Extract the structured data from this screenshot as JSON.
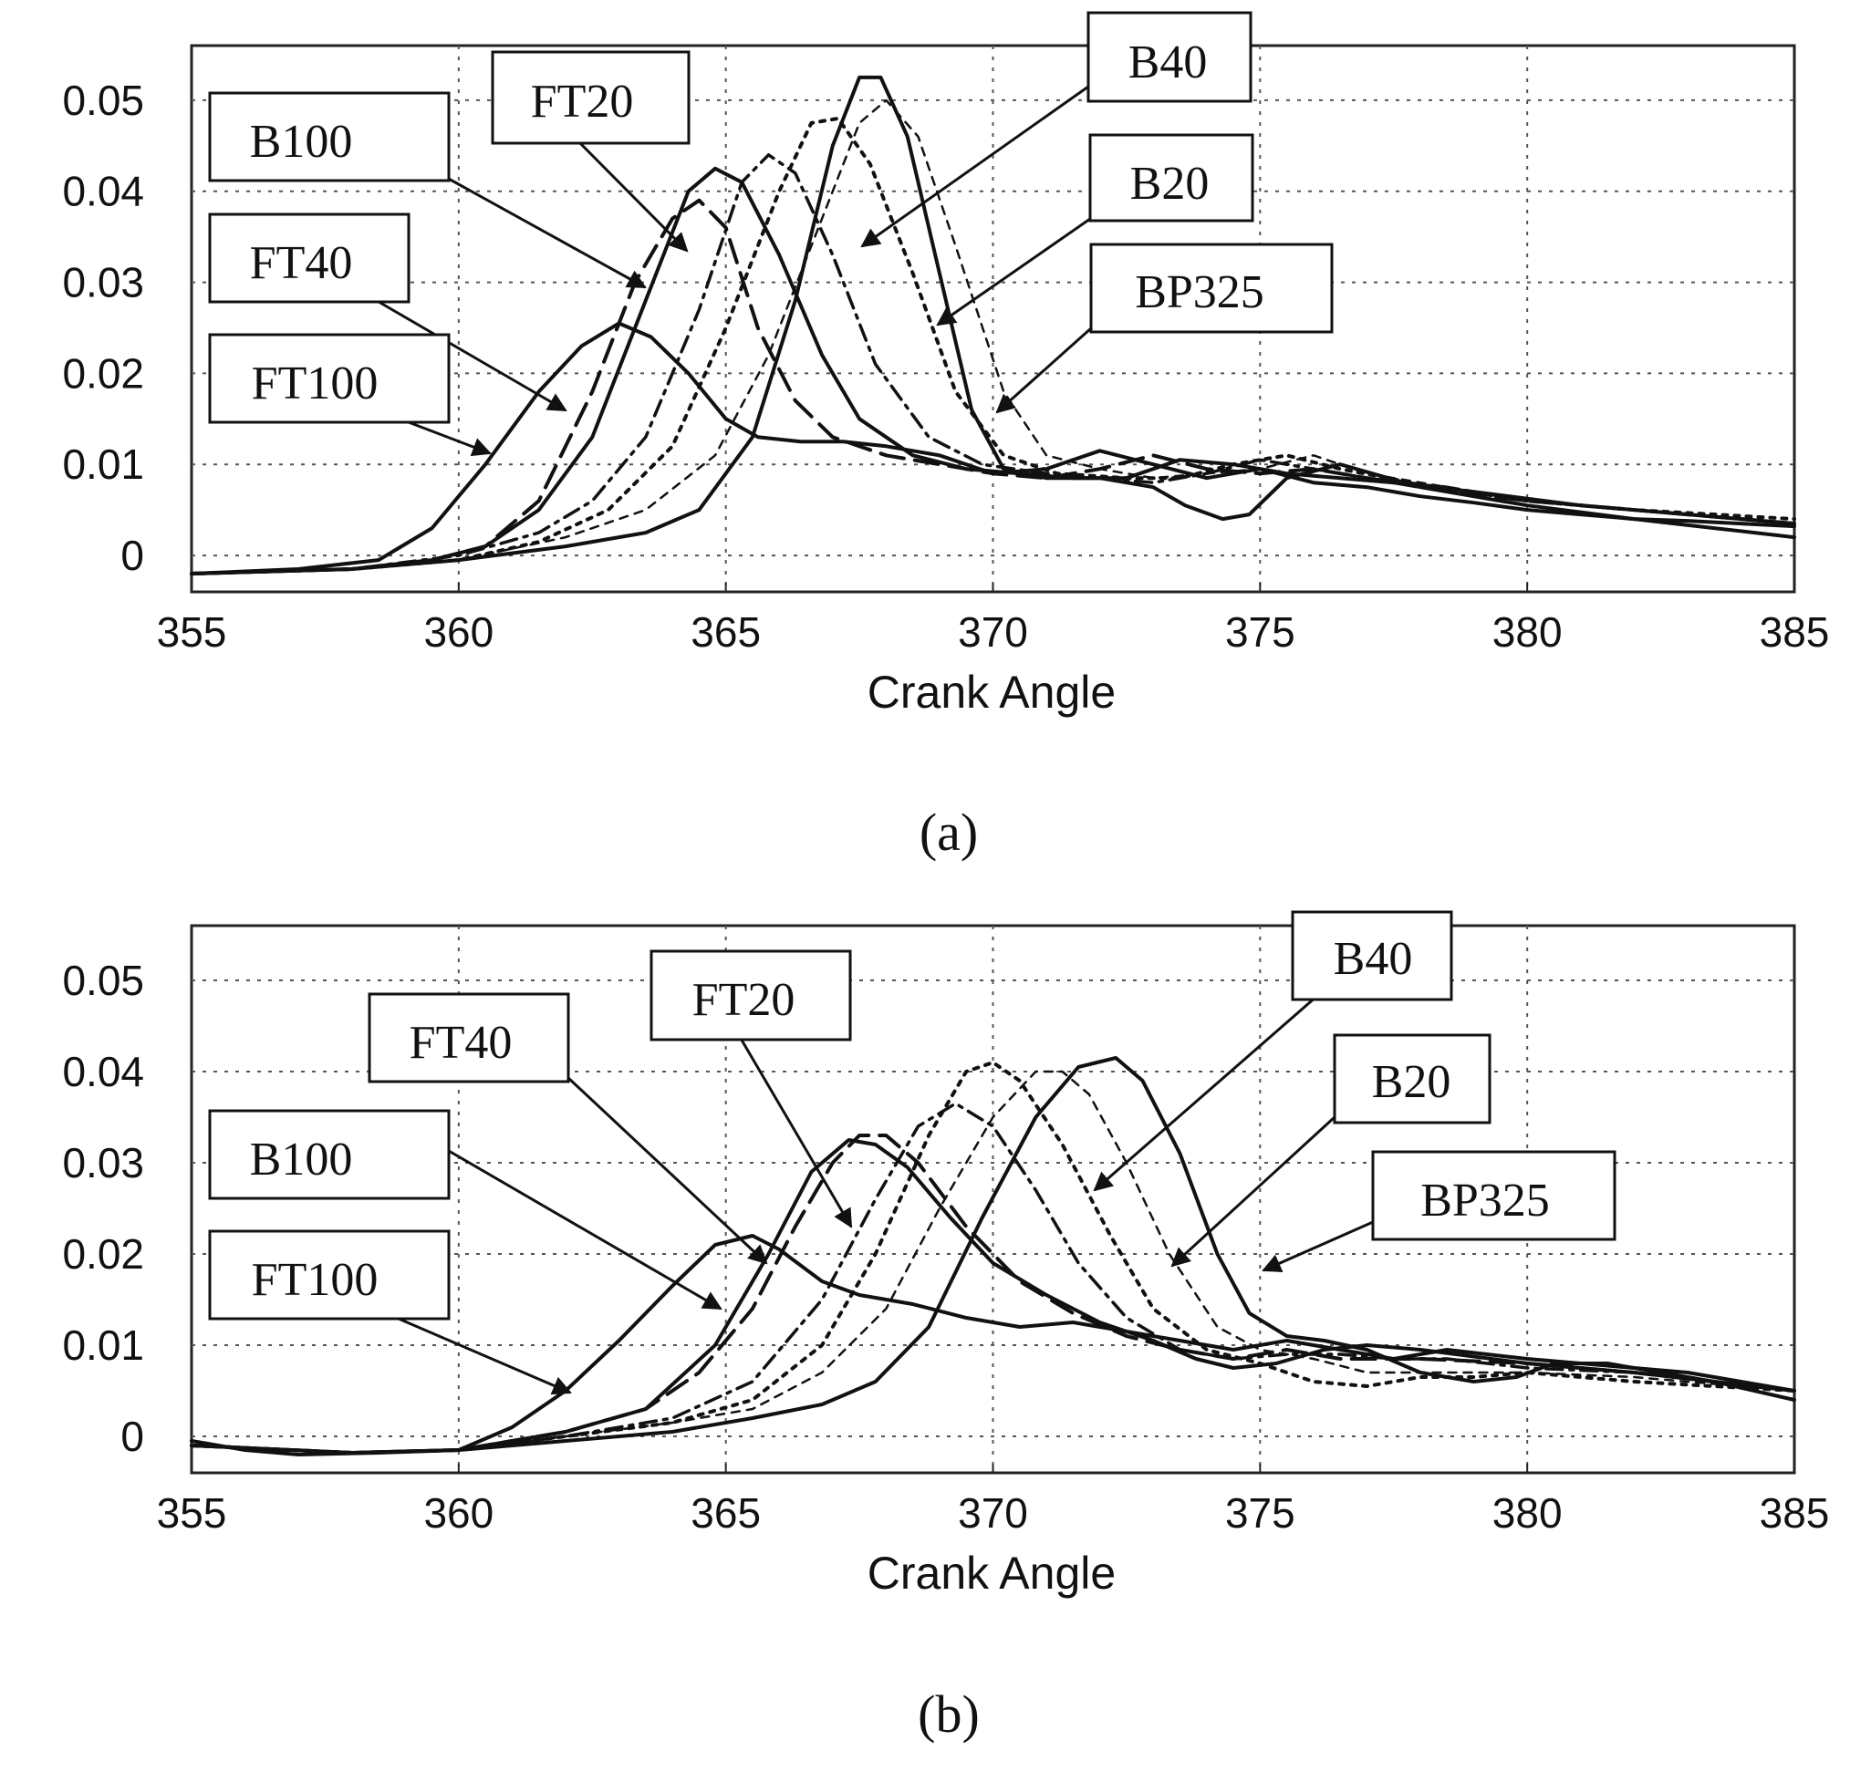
{
  "panels": [
    {
      "id": "a",
      "panel_label": "(a)",
      "labels": {
        "B100": "B100",
        "FT20": "FT20",
        "B40": "B40",
        "B20": "B20",
        "FT40": "FT40",
        "BP325": "BP325",
        "FT100": "FT100"
      }
    },
    {
      "id": "b",
      "panel_label": "(b)",
      "labels": {
        "B40": "B40",
        "FT20": "FT20",
        "FT40": "FT40",
        "B20": "B20",
        "B100": "B100",
        "BP325": "BP325",
        "FT100": "FT100"
      }
    }
  ],
  "chart_data": [
    {
      "type": "line",
      "panel": "(a)",
      "title": "",
      "xlabel": "Crank Angle",
      "ylabel": "",
      "xlim": [
        355,
        385
      ],
      "ylim": [
        -0.004,
        0.056
      ],
      "xticks": [
        355,
        360,
        365,
        370,
        375,
        380,
        385
      ],
      "yticks": [
        0,
        0.01,
        0.02,
        0.03,
        0.04,
        0.05
      ],
      "ytick_labels": [
        "0",
        "0.01",
        "0.02",
        "0.03",
        "0.04",
        "0.05"
      ],
      "grid": true,
      "series": [
        {
          "name": "FT100",
          "style": "solid",
          "x": [
            355,
            357,
            358.5,
            359.5,
            360.5,
            361.5,
            362.3,
            363,
            363.6,
            364.3,
            365,
            365.6,
            366.4,
            367.2,
            368,
            369,
            370,
            371,
            372,
            373,
            374,
            375,
            376,
            377,
            378,
            379,
            380,
            381,
            382,
            383,
            384,
            385
          ],
          "y": [
            -0.002,
            -0.0015,
            -0.0005,
            0.003,
            0.01,
            0.018,
            0.023,
            0.0255,
            0.024,
            0.02,
            0.015,
            0.013,
            0.0125,
            0.0125,
            0.012,
            0.011,
            0.009,
            0.0095,
            0.0115,
            0.01,
            0.0085,
            0.0095,
            0.008,
            0.0075,
            0.0065,
            0.0058,
            0.005,
            0.0045,
            0.004,
            0.0038,
            0.0035,
            0.0032
          ]
        },
        {
          "name": "FT40",
          "style": "longdash",
          "x": [
            355,
            358,
            359.5,
            360.5,
            361.5,
            362.5,
            363.3,
            364,
            364.5,
            365,
            365.6,
            366.3,
            367,
            368,
            369,
            370,
            371,
            372,
            373,
            374,
            375,
            376,
            377,
            378,
            380,
            382,
            385
          ],
          "y": [
            -0.002,
            -0.0015,
            -0.0005,
            0.001,
            0.006,
            0.018,
            0.03,
            0.037,
            0.039,
            0.036,
            0.025,
            0.017,
            0.013,
            0.011,
            0.01,
            0.009,
            0.0085,
            0.0095,
            0.011,
            0.0095,
            0.009,
            0.0095,
            0.0085,
            0.0075,
            0.006,
            0.005,
            0.0035
          ]
        },
        {
          "name": "B100",
          "style": "solid",
          "x": [
            355,
            358,
            359.5,
            360.5,
            361.5,
            362.5,
            363.5,
            364.3,
            364.8,
            365.3,
            366,
            366.8,
            367.5,
            368.5,
            369.5,
            370.5,
            371.5,
            372.5,
            373.5,
            374.5,
            375.5,
            376.5,
            377.5,
            379,
            381,
            383,
            385
          ],
          "y": [
            -0.002,
            -0.0015,
            -0.0005,
            0.001,
            0.005,
            0.013,
            0.028,
            0.04,
            0.0425,
            0.041,
            0.033,
            0.022,
            0.015,
            0.011,
            0.0095,
            0.009,
            0.0085,
            0.0085,
            0.0105,
            0.01,
            0.009,
            0.0085,
            0.008,
            0.007,
            0.0055,
            0.0045,
            0.0035
          ]
        },
        {
          "name": "FT20",
          "style": "dashdot",
          "x": [
            355,
            358,
            360,
            361.5,
            362.5,
            363.5,
            364.5,
            365.3,
            365.8,
            366.3,
            367,
            367.8,
            368.8,
            369.8,
            371,
            372,
            373,
            374,
            375,
            376,
            377,
            378.5,
            380,
            382,
            385
          ],
          "y": [
            -0.002,
            -0.0015,
            0,
            0.0025,
            0.006,
            0.013,
            0.027,
            0.041,
            0.044,
            0.042,
            0.033,
            0.021,
            0.013,
            0.01,
            0.009,
            0.0085,
            0.008,
            0.009,
            0.0105,
            0.0095,
            0.0085,
            0.0075,
            0.006,
            0.005,
            0.0035
          ]
        },
        {
          "name": "B40",
          "style": "dotted",
          "x": [
            355,
            358,
            360,
            361.5,
            362.8,
            364,
            365,
            366,
            366.6,
            367.1,
            367.7,
            368.5,
            369.3,
            370.2,
            371.2,
            372.5,
            373.5,
            374.5,
            375.5,
            376.5,
            378,
            380,
            382,
            385
          ],
          "y": [
            -0.002,
            -0.0015,
            -0.0005,
            0.0015,
            0.005,
            0.012,
            0.025,
            0.04,
            0.0475,
            0.048,
            0.043,
            0.031,
            0.018,
            0.011,
            0.009,
            0.0085,
            0.0085,
            0.01,
            0.011,
            0.0095,
            0.0078,
            0.006,
            0.005,
            0.004
          ]
        },
        {
          "name": "B20",
          "style": "shortdash",
          "x": [
            355,
            358,
            360,
            362,
            363.5,
            364.8,
            365.8,
            366.8,
            367.5,
            368,
            368.6,
            369.3,
            370.2,
            371,
            372,
            373,
            374,
            375,
            376,
            377,
            378.5,
            380,
            382,
            385
          ],
          "y": [
            -0.002,
            -0.0015,
            -0.0005,
            0.002,
            0.005,
            0.011,
            0.022,
            0.037,
            0.0475,
            0.05,
            0.046,
            0.034,
            0.018,
            0.011,
            0.0095,
            0.0085,
            0.009,
            0.0095,
            0.011,
            0.009,
            0.0075,
            0.006,
            0.005,
            0.0035
          ]
        },
        {
          "name": "BP325",
          "style": "solid",
          "x": [
            355,
            358,
            360,
            362,
            363.5,
            364.5,
            365.5,
            366.3,
            367,
            367.5,
            367.9,
            368.4,
            369,
            369.6,
            370.2,
            371,
            372,
            373,
            373.6,
            374.3,
            374.8,
            375.5,
            376.5,
            378,
            380,
            382,
            383.5,
            385
          ],
          "y": [
            -0.002,
            -0.0015,
            -0.0005,
            0.001,
            0.0025,
            0.005,
            0.013,
            0.028,
            0.045,
            0.0525,
            0.0525,
            0.046,
            0.031,
            0.016,
            0.0095,
            0.0085,
            0.0085,
            0.0075,
            0.0055,
            0.004,
            0.0045,
            0.0085,
            0.01,
            0.0075,
            0.0055,
            0.004,
            0.003,
            0.002
          ]
        }
      ],
      "annotations": [
        "B100",
        "FT20",
        "B40",
        "B20",
        "FT40",
        "BP325",
        "FT100"
      ]
    },
    {
      "type": "line",
      "panel": "(b)",
      "title": "",
      "xlabel": "Crank Angle",
      "ylabel": "",
      "xlim": [
        355,
        385
      ],
      "ylim": [
        -0.004,
        0.056
      ],
      "xticks": [
        355,
        360,
        365,
        370,
        375,
        380,
        385
      ],
      "yticks": [
        0,
        0.01,
        0.02,
        0.03,
        0.04,
        0.05
      ],
      "ytick_labels": [
        "0",
        "0.01",
        "0.02",
        "0.03",
        "0.04",
        "0.05"
      ],
      "grid": true,
      "series": [
        {
          "name": "FT100",
          "style": "solid",
          "x": [
            355,
            356,
            357,
            358.5,
            360,
            361,
            362,
            363,
            364,
            364.8,
            365.5,
            366,
            366.8,
            367.5,
            368.5,
            369.5,
            370.5,
            371.5,
            372.5,
            373.5,
            374.5,
            375.5,
            376.5,
            377.5,
            378.5,
            380,
            381,
            382,
            383,
            384,
            385
          ],
          "y": [
            -0.0005,
            -0.0015,
            -0.002,
            -0.0018,
            -0.0015,
            0.001,
            0.005,
            0.0105,
            0.0165,
            0.021,
            0.022,
            0.0205,
            0.017,
            0.0155,
            0.0145,
            0.013,
            0.012,
            0.0125,
            0.0115,
            0.0105,
            0.0095,
            0.0105,
            0.0095,
            0.0085,
            0.0095,
            0.0085,
            0.008,
            0.0075,
            0.007,
            0.006,
            0.005
          ]
        },
        {
          "name": "FT40",
          "style": "longdash",
          "x": [
            355,
            358,
            360,
            362,
            363.5,
            364.5,
            365.5,
            366.3,
            367,
            367.5,
            368,
            368.6,
            369.5,
            370.5,
            371.5,
            372.5,
            373.5,
            374.5,
            375.5,
            376.5,
            378,
            380,
            382,
            385
          ],
          "y": [
            -0.001,
            -0.0018,
            -0.0015,
            0.0005,
            0.003,
            0.007,
            0.014,
            0.023,
            0.03,
            0.033,
            0.033,
            0.03,
            0.023,
            0.017,
            0.0135,
            0.011,
            0.0095,
            0.0085,
            0.0095,
            0.0085,
            0.0085,
            0.008,
            0.007,
            0.005
          ]
        },
        {
          "name": "B100",
          "style": "solid",
          "x": [
            355,
            358,
            360,
            362,
            363.5,
            364.8,
            365.8,
            366.6,
            367.3,
            367.8,
            368.4,
            369.2,
            370,
            371,
            372,
            373,
            373.8,
            374.5,
            375.3,
            376.2,
            377,
            378,
            380,
            382,
            385
          ],
          "y": [
            -0.001,
            -0.0018,
            -0.0015,
            0.0005,
            0.003,
            0.01,
            0.02,
            0.029,
            0.0325,
            0.032,
            0.0295,
            0.024,
            0.019,
            0.0155,
            0.0125,
            0.0105,
            0.0085,
            0.0075,
            0.008,
            0.0095,
            0.01,
            0.0095,
            0.008,
            0.007,
            0.005
          ]
        },
        {
          "name": "FT20",
          "style": "dashdot",
          "x": [
            355,
            358,
            360,
            362,
            364,
            365.5,
            366.8,
            367.8,
            368.6,
            369.3,
            370,
            370.8,
            371.6,
            372.5,
            373.5,
            374.5,
            375.5,
            376.5,
            377.5,
            378.5,
            380,
            382,
            385
          ],
          "y": [
            -0.001,
            -0.0018,
            -0.0015,
            0,
            0.002,
            0.006,
            0.015,
            0.026,
            0.034,
            0.0365,
            0.034,
            0.027,
            0.019,
            0.013,
            0.0095,
            0.0085,
            0.009,
            0.009,
            0.0085,
            0.0085,
            0.0075,
            0.007,
            0.005
          ]
        },
        {
          "name": "B40",
          "style": "dotted",
          "x": [
            355,
            358,
            360,
            362,
            364,
            365.5,
            366.8,
            367.8,
            368.8,
            369.5,
            370,
            370.5,
            371.3,
            372.2,
            373,
            374,
            375,
            376,
            377,
            378,
            379,
            380,
            382,
            385
          ],
          "y": [
            -0.001,
            -0.0018,
            -0.0015,
            0,
            0.0015,
            0.004,
            0.01,
            0.02,
            0.033,
            0.04,
            0.041,
            0.039,
            0.032,
            0.022,
            0.014,
            0.0095,
            0.008,
            0.006,
            0.0055,
            0.0065,
            0.0065,
            0.007,
            0.006,
            0.005
          ]
        },
        {
          "name": "B20",
          "style": "shortdash",
          "x": [
            355,
            358,
            360,
            362,
            364,
            365.5,
            366.8,
            368,
            369,
            370,
            370.8,
            371.3,
            371.8,
            372.5,
            373.3,
            374.2,
            375,
            376,
            377,
            378,
            380,
            382,
            385
          ],
          "y": [
            -0.001,
            -0.0018,
            -0.0015,
            0,
            0.0015,
            0.003,
            0.007,
            0.014,
            0.025,
            0.035,
            0.04,
            0.04,
            0.0375,
            0.03,
            0.02,
            0.012,
            0.0095,
            0.0085,
            0.007,
            0.007,
            0.007,
            0.0065,
            0.005
          ]
        },
        {
          "name": "BP325",
          "style": "solid",
          "x": [
            355,
            358,
            360,
            362,
            364,
            365.5,
            366.8,
            367.8,
            368.8,
            369.8,
            370.8,
            371.6,
            372.3,
            372.8,
            373.5,
            374.2,
            374.8,
            375.5,
            376.2,
            377,
            378,
            379,
            379.8,
            380.5,
            381.5,
            382.5,
            383.5,
            385
          ],
          "y": [
            -0.001,
            -0.0018,
            -0.0015,
            -0.0005,
            0.0005,
            0.002,
            0.0035,
            0.006,
            0.012,
            0.024,
            0.035,
            0.0405,
            0.0415,
            0.039,
            0.031,
            0.02,
            0.0135,
            0.011,
            0.0105,
            0.0095,
            0.007,
            0.006,
            0.0065,
            0.008,
            0.008,
            0.007,
            0.006,
            0.004
          ]
        }
      ],
      "annotations": [
        "B40",
        "FT20",
        "FT40",
        "B20",
        "B100",
        "BP325",
        "FT100"
      ]
    }
  ]
}
